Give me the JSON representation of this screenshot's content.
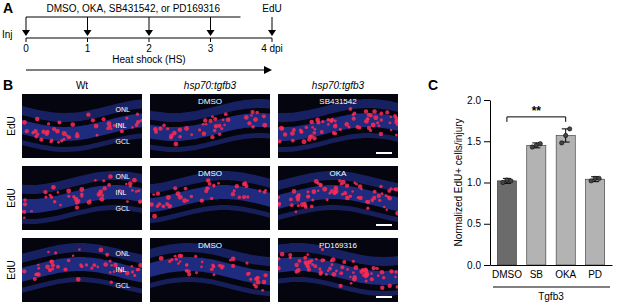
{
  "panel_labels": [
    "A",
    "B",
    "C"
  ],
  "timeline": {
    "injection_label": "Inj",
    "treatment_label": "DMSO, OKA, SB431542, or PD169316",
    "treatment_days": [
      0,
      1,
      2,
      3
    ],
    "edu_label": "EdU",
    "edu_day": 4,
    "xlim": [
      0,
      4
    ],
    "ticks": [
      0,
      1,
      2,
      3,
      {
        "value": 4,
        "label": "4 dpi"
      }
    ],
    "heat_shock_label": "Heat shock (HS)"
  },
  "images": {
    "column_headers": [
      "Wt",
      "hsp70:tgfb3",
      "hsp70:tgfb3"
    ],
    "row_label": "EdU",
    "layer_labels": [
      "ONL",
      "INL",
      "GCL"
    ],
    "rows": [
      {
        "conditions": [
          "DMSO",
          "SB431542"
        ]
      },
      {
        "conditions": [
          "DMSO",
          "OKA"
        ]
      },
      {
        "conditions": [
          "DMSO",
          "PD169316"
        ]
      }
    ]
  },
  "chart_data": {
    "type": "bar",
    "y_label": "Normalized EdU+ cells/injury",
    "categories": [
      "DMSO",
      "SB",
      "OKA",
      "PD"
    ],
    "group_label": "Tgfb3",
    "values": [
      1.02,
      1.45,
      1.57,
      1.04
    ],
    "errors": [
      0.03,
      0.03,
      0.08,
      0.03
    ],
    "points": [
      [
        1.0,
        1.03,
        1.02
      ],
      [
        1.43,
        1.45,
        1.47
      ],
      [
        1.48,
        1.57,
        1.65
      ],
      [
        1.02,
        1.05,
        1.05
      ]
    ],
    "colors": [
      "#6b6b6b",
      "#b3b3b3",
      "#b3b3b3",
      "#b3b3b3"
    ],
    "ylim": [
      0,
      2.0
    ],
    "yticks": [
      {
        "value": 0,
        "label": "0.0"
      },
      {
        "value": 0.5,
        "label": "0.5"
      },
      {
        "value": 1.0,
        "label": "1.0"
      },
      {
        "value": 1.5,
        "label": "1.5"
      },
      {
        "value": 2.0,
        "label": "2.0"
      }
    ],
    "significance": {
      "from": 0,
      "to": 2,
      "label": "**"
    }
  }
}
